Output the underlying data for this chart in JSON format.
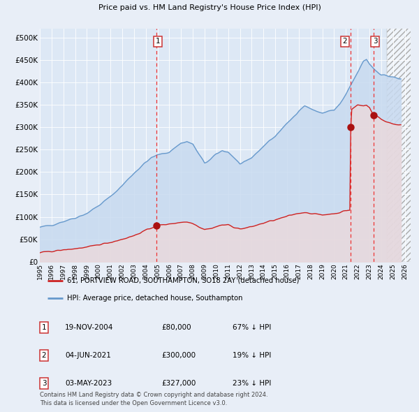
{
  "title": "61, PORTVIEW ROAD, SOUTHAMPTON, SO18 2AY",
  "subtitle": "Price paid vs. HM Land Registry's House Price Index (HPI)",
  "xlim_start": 1995.0,
  "xlim_end": 2026.5,
  "ylim": [
    0,
    520000
  ],
  "yticks": [
    0,
    50000,
    100000,
    150000,
    200000,
    250000,
    300000,
    350000,
    400000,
    450000,
    500000
  ],
  "ytick_labels": [
    "£0",
    "£50K",
    "£100K",
    "£150K",
    "£200K",
    "£250K",
    "£300K",
    "£350K",
    "£400K",
    "£450K",
    "£500K"
  ],
  "background_color": "#e8eef7",
  "plot_bg_color": "#dde8f5",
  "hpi_line_color": "#6699cc",
  "hpi_fill_color": "#c8daf0",
  "price_line_color": "#cc2222",
  "marker_color": "#aa1111",
  "dashed_line_color": "#ee3333",
  "hatch_color": "#cccccc",
  "sale_points": [
    {
      "year": 2004.89,
      "price": 80000,
      "label": "1"
    },
    {
      "year": 2021.42,
      "price": 300000,
      "label": "2"
    },
    {
      "year": 2023.34,
      "price": 327000,
      "label": "3"
    }
  ],
  "legend_label_price": "61, PORTVIEW ROAD, SOUTHAMPTON, SO18 2AY (detached house)",
  "legend_label_hpi": "HPI: Average price, detached house, Southampton",
  "table_rows": [
    {
      "num": "1",
      "date": "19-NOV-2004",
      "price": "£80,000",
      "hpi": "67% ↓ HPI"
    },
    {
      "num": "2",
      "date": "04-JUN-2021",
      "price": "£300,000",
      "hpi": "19% ↓ HPI"
    },
    {
      "num": "3",
      "date": "03-MAY-2023",
      "price": "£327,000",
      "hpi": "23% ↓ HPI"
    }
  ],
  "footnote1": "Contains HM Land Registry data © Crown copyright and database right 2024.",
  "footnote2": "This data is licensed under the Open Government Licence v3.0.",
  "hatch_region_start": 2024.5,
  "hatch_region_end": 2027.0,
  "hpi_anchors": [
    [
      1995.0,
      76000
    ],
    [
      1996.0,
      82000
    ],
    [
      1997.0,
      90000
    ],
    [
      1998.0,
      98000
    ],
    [
      1999.0,
      108000
    ],
    [
      2000.0,
      125000
    ],
    [
      2001.0,
      145000
    ],
    [
      2002.0,
      170000
    ],
    [
      2003.0,
      198000
    ],
    [
      2004.0,
      222000
    ],
    [
      2004.5,
      232000
    ],
    [
      2005.0,
      238000
    ],
    [
      2006.0,
      245000
    ],
    [
      2007.0,
      265000
    ],
    [
      2007.5,
      268000
    ],
    [
      2008.0,
      262000
    ],
    [
      2008.5,
      240000
    ],
    [
      2009.0,
      220000
    ],
    [
      2009.5,
      228000
    ],
    [
      2010.0,
      240000
    ],
    [
      2010.5,
      248000
    ],
    [
      2011.0,
      245000
    ],
    [
      2011.5,
      232000
    ],
    [
      2012.0,
      218000
    ],
    [
      2012.5,
      222000
    ],
    [
      2013.0,
      232000
    ],
    [
      2013.5,
      245000
    ],
    [
      2014.0,
      258000
    ],
    [
      2014.5,
      270000
    ],
    [
      2015.0,
      280000
    ],
    [
      2015.5,
      295000
    ],
    [
      2016.0,
      308000
    ],
    [
      2016.5,
      322000
    ],
    [
      2017.0,
      338000
    ],
    [
      2017.5,
      348000
    ],
    [
      2018.0,
      342000
    ],
    [
      2018.5,
      335000
    ],
    [
      2019.0,
      332000
    ],
    [
      2019.5,
      336000
    ],
    [
      2020.0,
      338000
    ],
    [
      2020.5,
      352000
    ],
    [
      2021.0,
      372000
    ],
    [
      2021.5,
      398000
    ],
    [
      2022.0,
      422000
    ],
    [
      2022.5,
      448000
    ],
    [
      2022.75,
      452000
    ],
    [
      2023.0,
      442000
    ],
    [
      2023.5,
      428000
    ],
    [
      2024.0,
      418000
    ],
    [
      2024.5,
      415000
    ],
    [
      2025.0,
      412000
    ],
    [
      2025.5,
      408000
    ]
  ],
  "price_anchors": [
    [
      1995.0,
      20000
    ],
    [
      1996.0,
      23000
    ],
    [
      1997.0,
      26000
    ],
    [
      1998.0,
      29000
    ],
    [
      1999.0,
      32000
    ],
    [
      2000.0,
      38000
    ],
    [
      2001.0,
      43000
    ],
    [
      2002.0,
      50000
    ],
    [
      2003.0,
      58000
    ],
    [
      2004.0,
      70000
    ],
    [
      2004.89,
      80000
    ],
    [
      2005.0,
      81000
    ],
    [
      2006.0,
      84000
    ],
    [
      2007.0,
      88000
    ],
    [
      2007.5,
      88500
    ],
    [
      2008.0,
      86000
    ],
    [
      2008.5,
      78000
    ],
    [
      2009.0,
      72000
    ],
    [
      2009.5,
      74000
    ],
    [
      2010.0,
      78000
    ],
    [
      2010.5,
      82000
    ],
    [
      2011.0,
      82000
    ],
    [
      2011.5,
      77000
    ],
    [
      2012.0,
      73000
    ],
    [
      2012.5,
      75000
    ],
    [
      2013.0,
      78000
    ],
    [
      2013.5,
      82000
    ],
    [
      2014.0,
      86000
    ],
    [
      2014.5,
      90000
    ],
    [
      2015.0,
      93000
    ],
    [
      2015.5,
      97000
    ],
    [
      2016.0,
      101000
    ],
    [
      2016.5,
      105000
    ],
    [
      2017.0,
      108000
    ],
    [
      2017.5,
      110000
    ],
    [
      2018.0,
      108000
    ],
    [
      2018.5,
      106000
    ],
    [
      2019.0,
      104000
    ],
    [
      2019.5,
      106000
    ],
    [
      2020.0,
      107000
    ],
    [
      2020.5,
      110000
    ],
    [
      2021.0,
      114000
    ],
    [
      2021.41,
      115000
    ],
    [
      2021.42,
      300000
    ],
    [
      2021.5,
      340000
    ],
    [
      2022.0,
      350000
    ],
    [
      2022.5,
      348000
    ],
    [
      2022.75,
      350000
    ],
    [
      2023.0,
      345000
    ],
    [
      2023.33,
      327000
    ],
    [
      2023.5,
      328000
    ],
    [
      2024.0,
      318000
    ],
    [
      2024.5,
      312000
    ],
    [
      2025.0,
      308000
    ],
    [
      2025.5,
      305000
    ]
  ]
}
